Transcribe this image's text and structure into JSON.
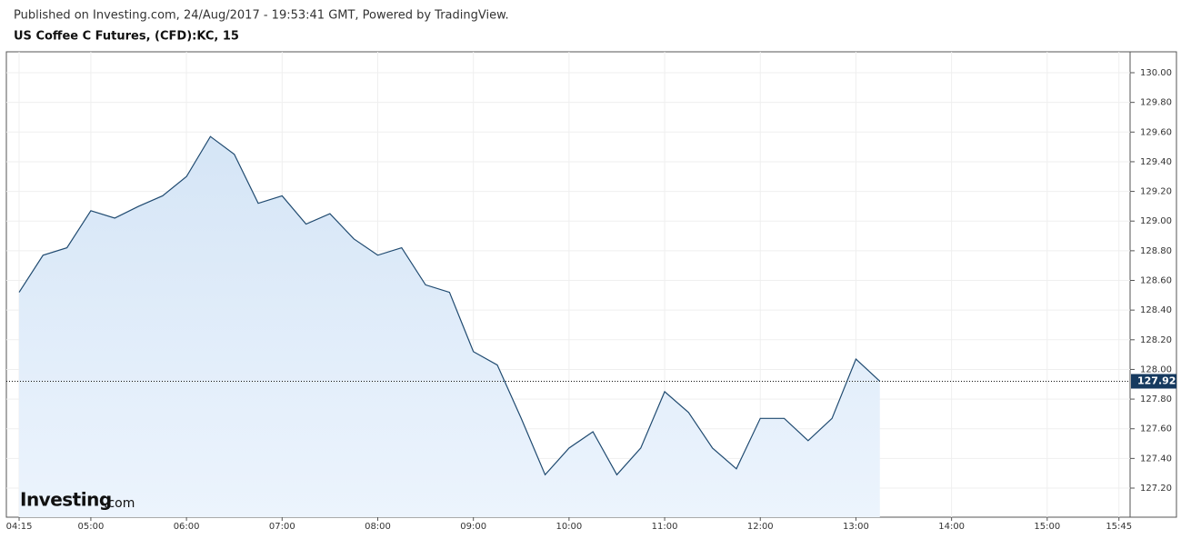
{
  "header": {
    "published": "Published on Investing.com, 24/Aug/2017 - 19:53:41 GMT, Powered by TradingView.",
    "logo_main": "Investing",
    "logo_suffix": ".com"
  },
  "chart_data": {
    "type": "area",
    "title": "US Coffee C Futures, (CFD):KC, 15",
    "x": [
      "04:15",
      "04:30",
      "04:45",
      "05:00",
      "05:15",
      "05:30",
      "05:45",
      "06:00",
      "06:15",
      "06:30",
      "06:45",
      "07:00",
      "07:15",
      "07:30",
      "07:45",
      "08:00",
      "08:15",
      "08:30",
      "08:45",
      "09:00",
      "09:15",
      "09:30",
      "09:45",
      "10:00",
      "10:15",
      "10:30",
      "10:45",
      "11:00",
      "11:15",
      "11:30",
      "11:45",
      "12:00",
      "12:15",
      "12:30",
      "12:45",
      "13:00",
      "13:15"
    ],
    "values": [
      128.52,
      128.77,
      128.82,
      129.07,
      129.02,
      129.1,
      129.17,
      129.3,
      129.57,
      129.45,
      129.12,
      129.17,
      128.98,
      129.05,
      128.88,
      128.77,
      128.82,
      128.57,
      128.52,
      128.12,
      128.03,
      127.67,
      127.29,
      127.47,
      127.58,
      127.29,
      127.47,
      127.85,
      127.71,
      127.47,
      127.33,
      127.67,
      127.67,
      127.52,
      127.67,
      128.07,
      127.92
    ],
    "color": "#1f4a70",
    "last_price": 127.92,
    "xlim": [
      "04:07",
      "15:52"
    ],
    "xticks": [
      "04:15",
      "05:00",
      "06:00",
      "07:00",
      "08:00",
      "09:00",
      "10:00",
      "11:00",
      "12:00",
      "13:00",
      "14:00",
      "15:00",
      "15:45"
    ],
    "ylim": [
      127.004,
      130.141
    ],
    "yticks": [
      {
        "value": 127.2,
        "label": "127.20"
      },
      {
        "value": 127.4,
        "label": "127.40"
      },
      {
        "value": 127.6,
        "label": "127.60"
      },
      {
        "value": 127.8,
        "label": "127.80"
      },
      {
        "value": 128.0,
        "label": "128.00"
      },
      {
        "value": 128.2,
        "label": "128.20"
      },
      {
        "value": 128.4,
        "label": "128.40"
      },
      {
        "value": 128.6,
        "label": "128.60"
      },
      {
        "value": 128.8,
        "label": "128.80"
      },
      {
        "value": 129.0,
        "label": "129.00"
      },
      {
        "value": 129.2,
        "label": "129.20"
      },
      {
        "value": 129.4,
        "label": "129.40"
      },
      {
        "value": 129.6,
        "label": "129.60"
      },
      {
        "value": 129.8,
        "label": "129.80"
      },
      {
        "value": 130.0,
        "label": "130.00"
      }
    ],
    "grid": true
  }
}
